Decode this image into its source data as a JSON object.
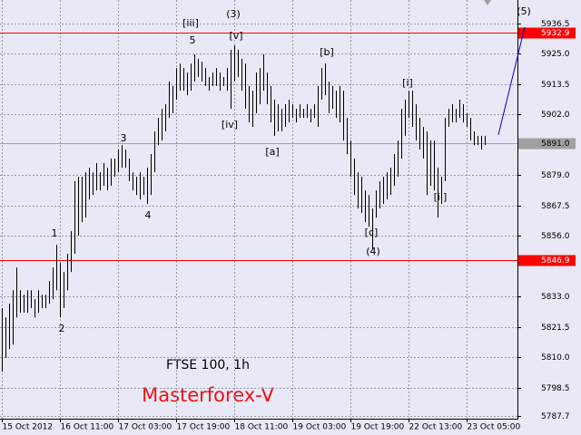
{
  "chart_data": {
    "type": "hl-bar",
    "title": "FTSE 100, 1h",
    "subtitle": "Masterforex-V",
    "color": "#000000",
    "xlim": [
      -0.5,
      142
    ],
    "ylim": [
      5786.7,
      5945.4
    ],
    "grid": true,
    "xticks": [
      {
        "value": 0,
        "label": "15 Oct 2012"
      },
      {
        "value": 16,
        "label": "16 Oct 11:00"
      },
      {
        "value": 32,
        "label": "17 Oct 03:00"
      },
      {
        "value": 48,
        "label": "17 Oct 19:00"
      },
      {
        "value": 64,
        "label": "18 Oct 11:00"
      },
      {
        "value": 80,
        "label": "19 Oct 03:00"
      },
      {
        "value": 96,
        "label": "19 Oct 19:00"
      },
      {
        "value": 112,
        "label": "22 Oct 13:00"
      },
      {
        "value": 128,
        "label": "23 Oct 05:00"
      }
    ],
    "yticks": [
      5936.5,
      {
        "value": 5925.0,
        "label": "5925.0"
      },
      5913.5,
      {
        "value": 5902.0,
        "label": "5902.0"
      },
      {
        "value": 5879.0,
        "label": "5879.0"
      },
      5867.5,
      {
        "value": 5856.0,
        "label": "5856.0"
      },
      {
        "value": 5833.0,
        "label": "5833.0"
      },
      5821.5,
      {
        "value": 5810.0,
        "label": "5810.0"
      },
      5798.5,
      5787.7
    ],
    "hlines": [
      {
        "value": 5932.9,
        "color": "#ff0000"
      },
      {
        "value": 5891.0,
        "label": "5891.0",
        "color": "#a0a0a0"
      },
      {
        "value": 5846.9,
        "color": "#ff0000"
      }
    ],
    "high": [
      5828.6,
      5825.1,
      5830.3,
      5835.4,
      5844.0,
      5835.4,
      5833.7,
      5835.4,
      5835.4,
      5832.0,
      5835.4,
      5833.7,
      5833.7,
      5838.9,
      5844.0,
      5852.6,
      5845.8,
      5842.3,
      5849.2,
      5857.8,
      5876.7,
      5878.4,
      5878.4,
      5880.1,
      5881.8,
      5880.1,
      5883.6,
      5880.1,
      5883.6,
      5881.8,
      5885.3,
      5885.3,
      5888.7,
      5890.4,
      5888.7,
      5885.3,
      5880.1,
      5878.4,
      5880.1,
      5878.4,
      5881.8,
      5887.0,
      5895.6,
      5900.7,
      5904.2,
      5905.9,
      5914.5,
      5912.8,
      5919.6,
      5921.3,
      5919.6,
      5917.9,
      5921.3,
      5924.8,
      5923.1,
      5922.0,
      5919.6,
      5916.2,
      5917.9,
      5919.6,
      5917.9,
      5916.2,
      5919.6,
      5926.5,
      5928.2,
      5926.5,
      5923.1,
      5921.3,
      5912.8,
      5911.0,
      5917.9,
      5919.6,
      5924.8,
      5917.9,
      5912.8,
      5907.6,
      5905.9,
      5904.2,
      5905.9,
      5907.6,
      5905.9,
      5904.2,
      5905.9,
      5904.2,
      5905.9,
      5904.2,
      5905.9,
      5912.8,
      5919.6,
      5921.3,
      5914.5,
      5912.8,
      5911.0,
      5912.8,
      5911.0,
      5900.7,
      5892.1,
      5885.3,
      5880.1,
      5878.4,
      5873.2,
      5871.5,
      5866.4,
      5873.2,
      5876.7,
      5878.4,
      5880.1,
      5881.8,
      5887.0,
      5892.1,
      5904.2,
      5907.6,
      5911.0,
      5911.0,
      5905.9,
      5900.7,
      5897.3,
      5895.6,
      5892.1,
      5892.1,
      5881.8,
      5878.4,
      5900.7,
      5904.2,
      5905.9,
      5904.2,
      5907.6,
      5905.9,
      5902.5,
      5900.7,
      5895.6,
      5893.9,
      5893.9,
      5893.9
    ],
    "low": [
      5804.5,
      5809.7,
      5813.1,
      5814.8,
      5825.1,
      5826.9,
      5826.9,
      5826.9,
      5828.6,
      5825.1,
      5826.9,
      5828.6,
      5828.6,
      5830.3,
      5832.0,
      5835.4,
      5825.1,
      5828.6,
      5835.4,
      5842.3,
      5849.2,
      5856.1,
      5861.2,
      5862.9,
      5869.8,
      5871.5,
      5873.2,
      5873.2,
      5875.0,
      5873.2,
      5875.0,
      5878.4,
      5880.1,
      5881.8,
      5881.8,
      5876.7,
      5873.2,
      5871.5,
      5869.8,
      5871.5,
      5868.1,
      5871.5,
      5880.1,
      5890.4,
      5892.1,
      5895.6,
      5900.7,
      5902.5,
      5907.6,
      5911.0,
      5911.0,
      5909.3,
      5911.0,
      5914.5,
      5916.2,
      5914.5,
      5912.8,
      5911.0,
      5912.8,
      5912.8,
      5911.0,
      5912.8,
      5911.0,
      5904.2,
      5914.5,
      5916.2,
      5911.0,
      5904.2,
      5899.0,
      5897.3,
      5902.5,
      5905.9,
      5911.0,
      5905.9,
      5899.0,
      5893.9,
      5895.6,
      5895.6,
      5897.3,
      5899.0,
      5900.7,
      5899.0,
      5900.7,
      5900.7,
      5900.7,
      5899.0,
      5900.7,
      5897.3,
      5907.6,
      5909.3,
      5902.5,
      5904.2,
      5900.7,
      5899.0,
      5892.1,
      5887.0,
      5878.4,
      5871.5,
      5866.4,
      5864.7,
      5861.2,
      5859.5,
      5850.9,
      5862.9,
      5866.4,
      5868.1,
      5869.8,
      5871.5,
      5875.0,
      5878.4,
      5885.3,
      5893.9,
      5900.7,
      5897.3,
      5892.1,
      5888.7,
      5885.3,
      5871.5,
      5875.0,
      5873.2,
      5862.9,
      5868.1,
      5876.7,
      5897.3,
      5899.0,
      5899.0,
      5900.7,
      5899.0,
      5897.3,
      5892.1,
      5890.4,
      5890.4,
      5888.7,
      5890.4
    ],
    "annotations": [
      {
        "label": "1",
        "x": 14.5,
        "y": 5856.8
      },
      {
        "label": "2",
        "x": 16.5,
        "y": 5820.7
      },
      {
        "label": "3",
        "x": 33.5,
        "y": 5892.8
      },
      {
        "label": "4",
        "x": 40.25,
        "y": 5863.6
      },
      {
        "label": "5",
        "x": 52.5,
        "y": 5929.9
      },
      {
        "label": "[iii]",
        "x": 52,
        "y": 5936.5
      },
      {
        "label": "(3)",
        "x": 63.75,
        "y": 5939.9
      },
      {
        "label": "[v]",
        "x": 64.5,
        "y": 5931.7
      },
      {
        "label": "[iv]",
        "x": 62.75,
        "y": 5898.0
      },
      {
        "label": "[a]",
        "x": 74.5,
        "y": 5887.7
      },
      {
        "label": "[b]",
        "x": 89.5,
        "y": 5925.5
      },
      {
        "label": "[c]",
        "x": 101.75,
        "y": 5857.1
      },
      {
        "label": "(4)",
        "x": 102.25,
        "y": 5849.9
      },
      {
        "label": "[i]",
        "x": 111.75,
        "y": 5913.8
      },
      {
        "label": "[ii]",
        "x": 120.75,
        "y": 5870.5
      },
      {
        "label": "(5)",
        "x": 143.75,
        "y": 5940.9
      }
    ],
    "trend_line": {
      "x": [
        136.75,
        144
      ],
      "y": [
        5894.3,
        5935.1
      ],
      "color": "#0000cc"
    }
  }
}
